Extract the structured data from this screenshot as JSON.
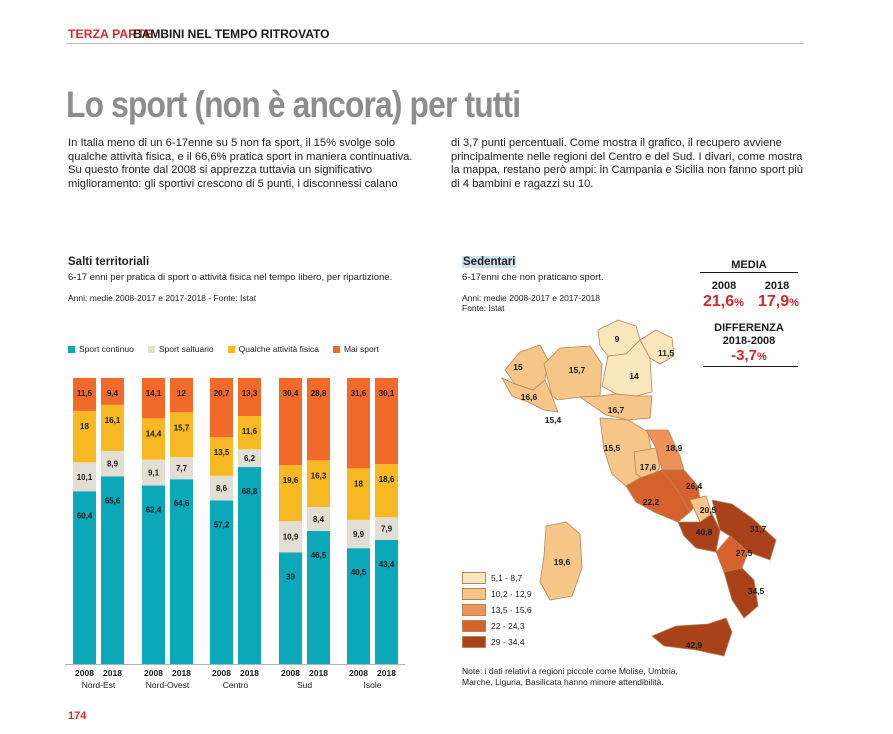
{
  "header": {
    "part": "TERZA PARTE",
    "section": "BAMBINI NEL TEMPO RITROVATO"
  },
  "title": "Lo sport (non è ancora) per tutti",
  "intro_left": [
    "In Italia meno di un 6-17enne su 5 non fa sport, il 15% svolge solo",
    "qualche attività fisica, e il 66,6% pratica sport in maniera continuativa.",
    "Su questo fronte dal 2008 si apprezza tuttavia un significativo",
    "miglioramento: gli sportivi crescono di 5 punti, i disconnessi calano"
  ],
  "intro_right": [
    "di 3,7 punti percentuali. Come mostra il grafico, il recupero avviene",
    "principalmente nelle regioni del Centro e del Sud. I divari, come mostra",
    "la mappa, restano però ampi: in Campania e Sicilia non fanno sport più",
    "di 4 bambini e ragazzi su 10."
  ],
  "chart_data": {
    "type": "bar",
    "stacked": true,
    "title": "Salti territoriali",
    "subtitle": "6-17 enni per pratica di sport o attività fisica nel tempo libero, per ripartizione.",
    "source": "Anni: medie 2008-2017 e 2017-2018 - Fonte: Istat",
    "groups": [
      "Nord-Est",
      "Nord-Ovest",
      "Centro",
      "Sud",
      "Isole"
    ],
    "categories": [
      "2008",
      "2018",
      "2008",
      "2018",
      "2008",
      "2018",
      "2008",
      "2018",
      "2008",
      "2018"
    ],
    "ylim": [
      0,
      100
    ],
    "series": [
      {
        "name": "Sport continuo",
        "color": "#0aa8b8",
        "values": [
          60.4,
          65.6,
          62.4,
          64.6,
          57.2,
          68.8,
          39,
          46.5,
          40.5,
          43.4
        ],
        "labels": [
          "60,4",
          "65,6",
          "62,4",
          "64,6",
          "57,2",
          "68,8",
          "39",
          "46,5",
          "40,5",
          "43,4"
        ]
      },
      {
        "name": "Sport saltuario",
        "color": "#e3ded3",
        "values": [
          10.1,
          8.9,
          9.1,
          7.7,
          8.6,
          6.2,
          10.9,
          8.4,
          9.9,
          7.9
        ],
        "labels": [
          "10,1",
          "8,9",
          "9,1",
          "7,7",
          "8,6",
          "6,2",
          "10,9",
          "8,4",
          "9,9",
          "7,9"
        ]
      },
      {
        "name": "Qualche attività fisica",
        "color": "#f7b822",
        "values": [
          18,
          16.1,
          14.4,
          15.7,
          13.5,
          11.6,
          19.6,
          16.3,
          18,
          18.6
        ],
        "labels": [
          "18",
          "16,1",
          "14,4",
          "15,7",
          "13,5",
          "11,6",
          "19,6",
          "16,3",
          "18",
          "18,6"
        ]
      },
      {
        "name": "Mai sport",
        "color": "#f26a2a",
        "values": [
          11.5,
          9.4,
          14.1,
          12,
          20.7,
          13.3,
          30.4,
          28.8,
          31.6,
          30.1
        ],
        "labels": [
          "11,5",
          "9,4",
          "14,1",
          "12",
          "20,7",
          "13,3",
          "30,4",
          "28,8",
          "31,6",
          "30,1"
        ]
      }
    ]
  },
  "map": {
    "title": "Sedentari",
    "subtitle": "6-17enni che non praticano sport.",
    "source": [
      "Anni: medie 2008-2017 e 2017-2018",
      "Fonte: Istat"
    ],
    "media_label": "MEDIA",
    "year_a": "2008",
    "year_b": "2018",
    "val_a": "21,6",
    "val_b": "17,9",
    "pct": "%",
    "diff_label_1": "DIFFERENZA",
    "diff_label_2": "2018-2008",
    "diff_val": "-3,7",
    "region_values": [
      "15",
      "9",
      "11,5",
      "15,7",
      "14",
      "16,6",
      "15,4",
      "16,7",
      "15,5",
      "17,6",
      "18,9",
      "22,2",
      "26,4",
      "20,5",
      "19,6",
      "40,8",
      "31,7",
      "27,5",
      "34,5",
      "42,9"
    ],
    "legend": [
      {
        "label": "5,1 - 8,7",
        "color": "#f8e7bd"
      },
      {
        "label": "10,2 - 12,9",
        "color": "#f5c688"
      },
      {
        "label": "13,5 - 15,6",
        "color": "#ee925a"
      },
      {
        "label": "22 - 24,3",
        "color": "#d5622c"
      },
      {
        "label": "29 - 34,4",
        "color": "#a9421a"
      }
    ],
    "note": [
      "Note: i dati relativi a regioni piccole come Molise, Umbria,",
      "Marche, Liguria, Basilicata hanno minore attendibilità."
    ]
  },
  "page_number": "174"
}
